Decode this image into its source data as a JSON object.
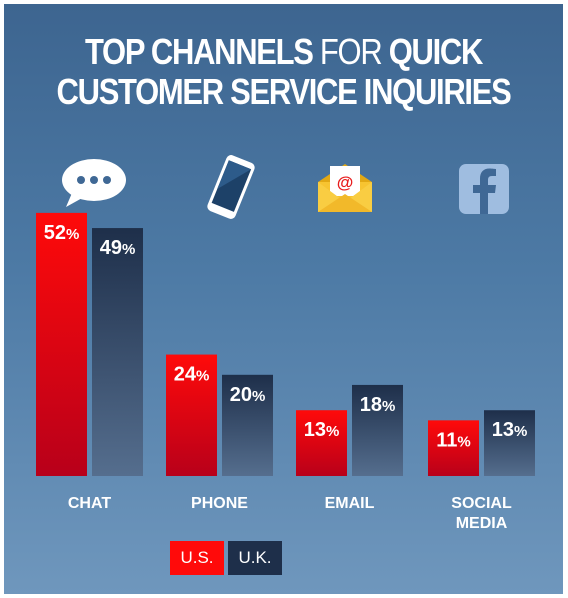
{
  "title": {
    "part1": "TOP CHANNELS ",
    "part2": "FOR",
    "part3": " QUICK",
    "line2": "CUSTOMER SERVICE INQUIRIES"
  },
  "icons": [
    "chat-bubble-icon",
    "smartphone-icon",
    "email-envelope-icon",
    "facebook-icon"
  ],
  "colors": {
    "us_top": "#ff0a0a",
    "us_bottom": "#b8001a",
    "uk_top": "#1e2f4a",
    "uk_bottom": "#556e8e",
    "icon_accent": "#f7c431"
  },
  "chart_data": {
    "type": "bar",
    "title": "TOP CHANNELS FOR QUICK CUSTOMER SERVICE INQUIRIES",
    "categories": [
      "CHAT",
      "PHONE",
      "EMAIL",
      "SOCIAL MEDIA"
    ],
    "series": [
      {
        "name": "U.S.",
        "values": [
          52,
          24,
          13,
          11
        ]
      },
      {
        "name": "U.K.",
        "values": [
          49,
          20,
          18,
          13
        ]
      }
    ],
    "value_suffix": "%",
    "legend_position": "bottom-left",
    "grid": false
  }
}
